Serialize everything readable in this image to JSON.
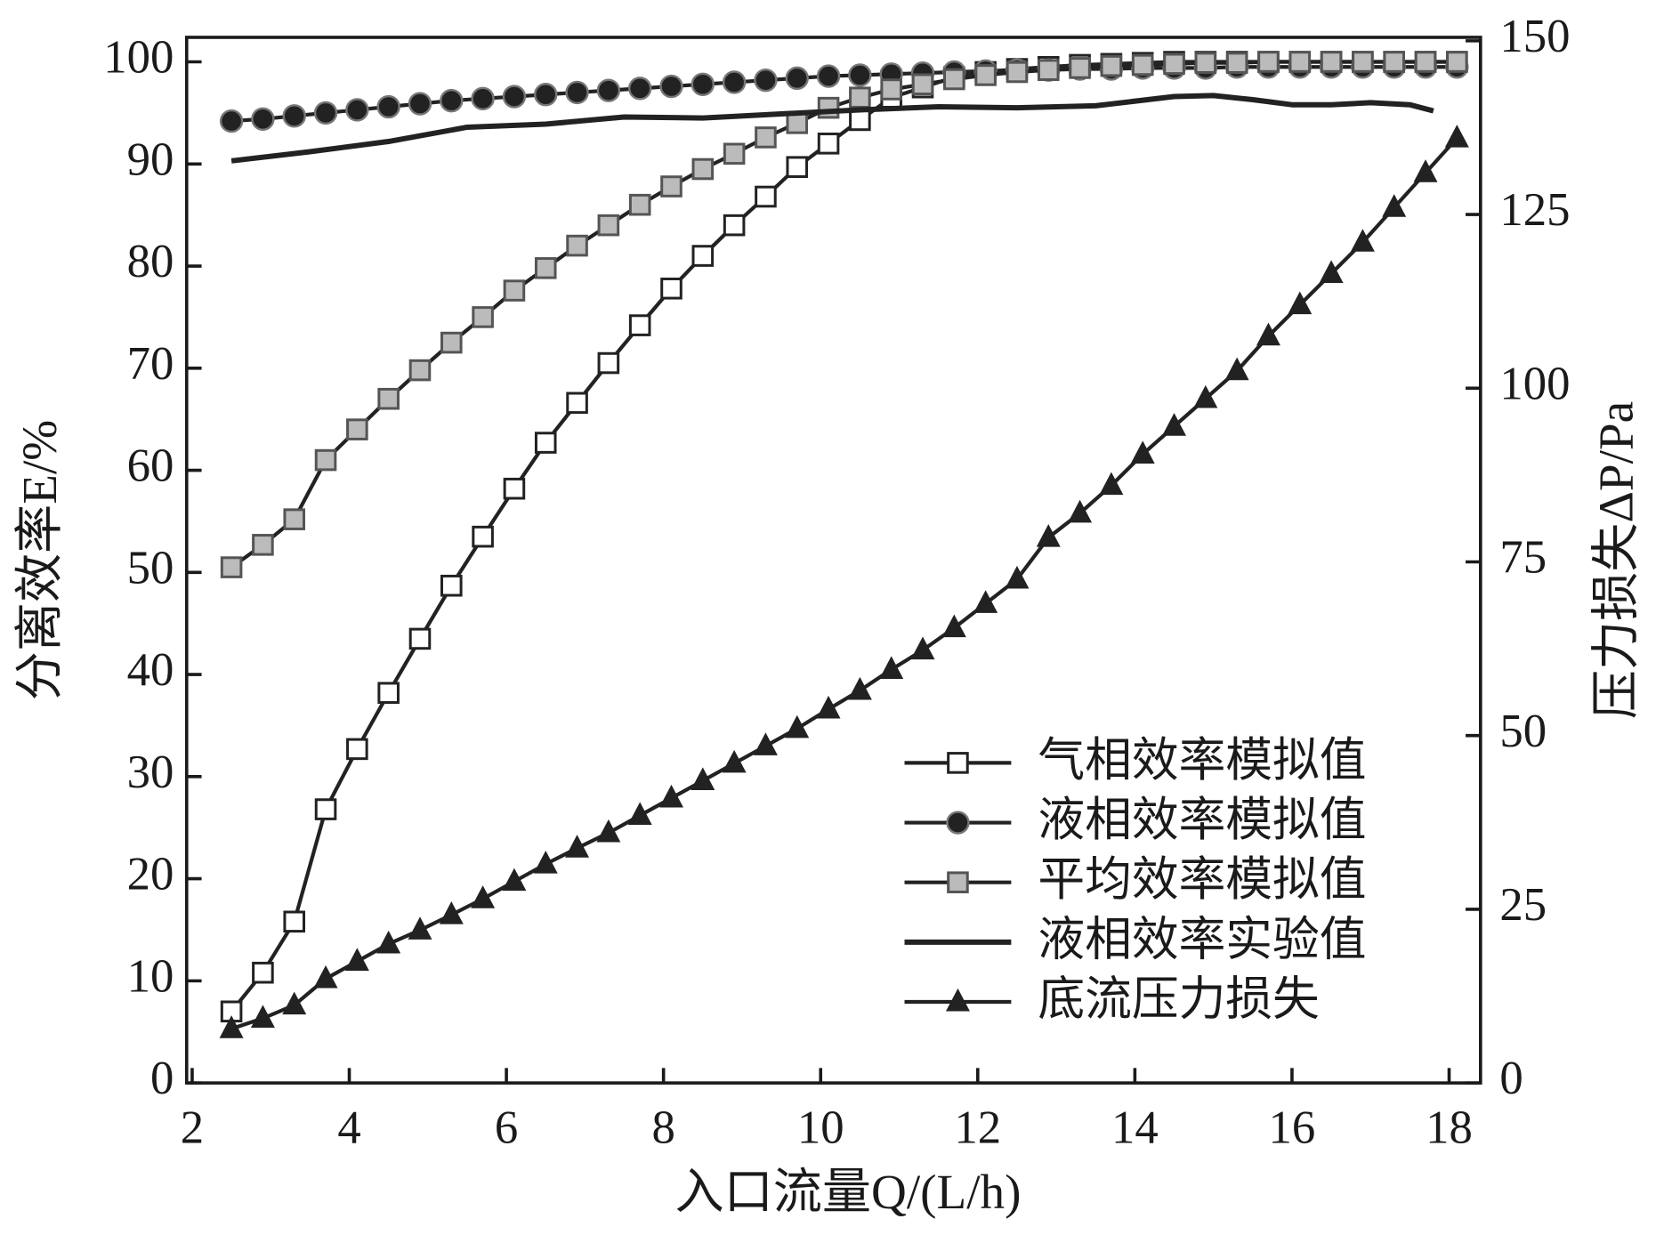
{
  "chart_data": {
    "type": "line",
    "xlabel": "入口流量Q/(L/h)",
    "ylabel": "分离效率E/%",
    "y2label": "压力损失ΔP/Pa",
    "xlim": [
      1.93,
      18.4
    ],
    "xticks": [
      2,
      4,
      6,
      8,
      10,
      12,
      14,
      16,
      18
    ],
    "ylim": [
      0,
      102.4
    ],
    "yticks": [
      0,
      10,
      20,
      30,
      40,
      50,
      60,
      70,
      80,
      90,
      100
    ],
    "y2lim": [
      0,
      150.5
    ],
    "y2ticks": [
      0,
      25,
      50,
      75,
      100,
      125,
      150
    ],
    "legend": "lower right",
    "series": [
      {
        "name": "气相效率模拟值",
        "color": "#222222",
        "marker": "square",
        "x": [
          2.5,
          2.9,
          3.3,
          3.7,
          4.1,
          4.5,
          4.9,
          5.3,
          5.7,
          6.1,
          6.5,
          6.9,
          7.3,
          7.7,
          8.1,
          8.5,
          8.9,
          9.3,
          9.7,
          10.1,
          10.5,
          10.9,
          11.3,
          11.7,
          12.1,
          12.5,
          12.9,
          13.3,
          13.7,
          14.1,
          14.5,
          14.9,
          15.3,
          15.7,
          16.1,
          16.5,
          16.9,
          17.3,
          17.7,
          18.1
        ],
        "values": [
          7,
          10.8,
          15.8,
          26.8,
          32.7,
          38.2,
          43.5,
          48.7,
          53.5,
          58.2,
          62.7,
          66.6,
          70.5,
          74.2,
          77.8,
          81,
          84,
          86.8,
          89.7,
          92,
          94.3,
          96.5,
          97.5,
          98.5,
          99,
          99.3,
          99.5,
          99.7,
          99.8,
          99.9,
          100,
          100,
          100,
          100,
          100,
          100,
          100,
          100,
          100,
          100
        ]
      },
      {
        "name": "液相效率模拟值",
        "color": "#222222",
        "marker": "circle",
        "x": [
          2.5,
          2.9,
          3.3,
          3.7,
          4.1,
          4.5,
          4.9,
          5.3,
          5.7,
          6.1,
          6.5,
          6.9,
          7.3,
          7.7,
          8.1,
          8.5,
          8.9,
          9.3,
          9.7,
          10.1,
          10.5,
          10.9,
          11.3,
          11.7,
          12.1,
          12.5,
          12.9,
          13.3,
          13.7,
          14.1,
          14.5,
          14.9,
          15.3,
          15.7,
          16.1,
          16.5,
          16.9,
          17.3,
          17.7,
          18.1
        ],
        "values": [
          94.2,
          94.4,
          94.7,
          95,
          95.3,
          95.6,
          95.9,
          96.2,
          96.4,
          96.6,
          96.8,
          97,
          97.2,
          97.4,
          97.6,
          97.8,
          98,
          98.2,
          98.4,
          98.6,
          98.7,
          98.8,
          98.9,
          99,
          99.1,
          99.2,
          99.2,
          99.3,
          99.3,
          99.4,
          99.4,
          99.4,
          99.5,
          99.5,
          99.5,
          99.5,
          99.5,
          99.5,
          99.5,
          99.5
        ]
      },
      {
        "name": "平均效率模拟值",
        "color": "#222222",
        "marker": "xsquare",
        "x": [
          2.5,
          2.9,
          3.3,
          3.7,
          4.1,
          4.5,
          4.9,
          5.3,
          5.7,
          6.1,
          6.5,
          6.9,
          7.3,
          7.7,
          8.1,
          8.5,
          8.9,
          9.3,
          9.7,
          10.1,
          10.5,
          10.9,
          11.3,
          11.7,
          12.1,
          12.5,
          12.9,
          13.3,
          13.7,
          14.1,
          14.5,
          14.9,
          15.3,
          15.7,
          16.1,
          16.5,
          16.9,
          17.3,
          17.7,
          18.1
        ],
        "values": [
          50.5,
          52.7,
          55.2,
          61,
          64,
          67,
          69.8,
          72.5,
          75,
          77.6,
          79.8,
          82,
          84,
          86,
          87.8,
          89.5,
          91,
          92.6,
          94,
          95.5,
          96.5,
          97.3,
          97.8,
          98.3,
          98.7,
          99,
          99.2,
          99.4,
          99.6,
          99.7,
          99.8,
          99.9,
          99.9,
          100,
          100,
          100,
          100,
          100,
          100,
          100
        ]
      },
      {
        "name": "液相效率实验值",
        "color": "#222222",
        "marker": "none",
        "x": [
          2.5,
          3.5,
          4.5,
          5.5,
          6.5,
          7.5,
          8.5,
          9.5,
          10.5,
          11.5,
          12.5,
          13.5,
          14.5,
          15,
          15.5,
          16,
          16.5,
          17,
          17.5,
          17.8
        ],
        "values": [
          90.3,
          91.2,
          92.2,
          93.6,
          93.9,
          94.6,
          94.5,
          94.9,
          95.3,
          95.6,
          95.5,
          95.7,
          96.6,
          96.7,
          96.3,
          95.8,
          95.8,
          96,
          95.8,
          95.2
        ]
      },
      {
        "name": "底流压力损失",
        "color": "#222222",
        "marker": "triangle",
        "axis": "y2",
        "x": [
          2.5,
          2.9,
          3.3,
          3.7,
          4.1,
          4.5,
          4.9,
          5.3,
          5.7,
          6.1,
          6.5,
          6.9,
          7.3,
          7.7,
          8.1,
          8.5,
          8.9,
          9.3,
          9.7,
          10.1,
          10.5,
          10.9,
          11.3,
          11.7,
          12.1,
          12.5,
          12.9,
          13.3,
          13.7,
          14.1,
          14.5,
          14.9,
          15.3,
          15.7,
          16.1,
          16.5,
          16.9,
          17.3,
          17.7,
          18.1
        ],
        "values": [
          7.8,
          9.3,
          11.2,
          15,
          17.5,
          20,
          22,
          24.2,
          26.5,
          29,
          31.5,
          33.8,
          36,
          38.5,
          41,
          43.5,
          46,
          48.5,
          51,
          53.8,
          56.5,
          59.5,
          62.3,
          65.5,
          69,
          72.5,
          78.5,
          82,
          86,
          90.5,
          94.5,
          98.5,
          102.5,
          107.5,
          112,
          116.5,
          121,
          126,
          131,
          136
        ]
      }
    ]
  }
}
